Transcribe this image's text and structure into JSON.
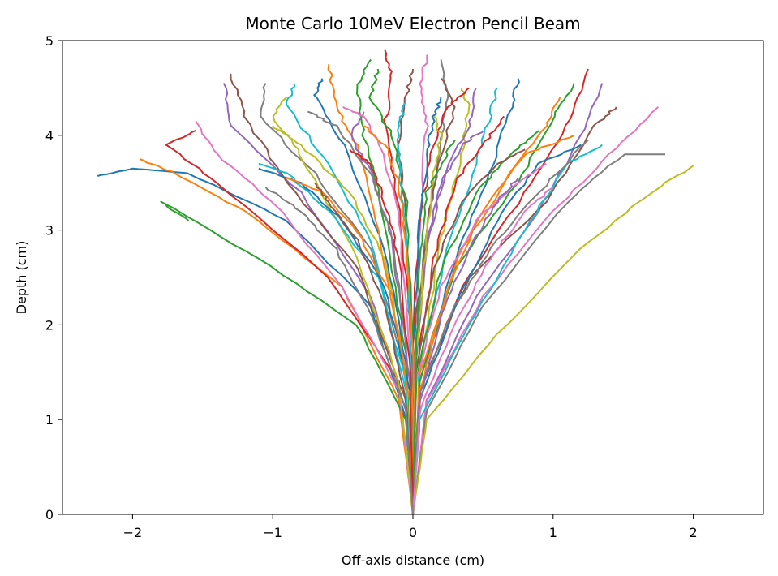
{
  "chart_data": {
    "type": "line",
    "title": "Monte Carlo 10MeV Electron Pencil Beam",
    "xlabel": "Off-axis distance (cm)",
    "ylabel": "Depth (cm)",
    "xlim": [
      -2.5,
      2.5
    ],
    "ylim": [
      0,
      5
    ],
    "x_ticks": [
      -2,
      -1,
      0,
      1,
      2
    ],
    "x_tick_labels": [
      "−2",
      "−1",
      "0",
      "1",
      "2"
    ],
    "y_ticks": [
      0,
      1,
      2,
      3,
      4,
      5
    ],
    "y_tick_labels": [
      "0",
      "1",
      "2",
      "3",
      "4",
      "5"
    ],
    "grid": false,
    "legend": "none",
    "palette": [
      "#1f77b4",
      "#ff7f0e",
      "#2ca02c",
      "#d62728",
      "#9467bd",
      "#8c564b",
      "#e377c2",
      "#7f7f7f",
      "#bcbd22",
      "#17becf"
    ],
    "series": [
      {
        "x": [
          0,
          -0.05,
          -0.3,
          -0.9,
          -1.6,
          -2.0,
          -2.25
        ],
        "y": [
          0,
          1.0,
          2.2,
          3.1,
          3.6,
          3.65,
          3.57
        ]
      },
      {
        "x": [
          0,
          -0.1,
          -0.5,
          -1.2,
          -1.7,
          -1.95
        ],
        "y": [
          0,
          1.2,
          2.4,
          3.2,
          3.6,
          3.75
        ]
      },
      {
        "x": [
          0,
          -0.05,
          -0.4,
          -1.1,
          -1.8,
          -1.6
        ],
        "y": [
          0,
          1.0,
          2.0,
          2.7,
          3.3,
          3.1
        ]
      },
      {
        "x": [
          0,
          -0.1,
          -0.6,
          -1.4,
          -1.75,
          -1.55
        ],
        "y": [
          0,
          1.4,
          2.5,
          3.5,
          3.9,
          4.05
        ]
      },
      {
        "x": [
          0,
          -0.05,
          -0.3,
          -0.8,
          -1.3,
          -1.35
        ],
        "y": [
          0,
          1.1,
          2.3,
          3.4,
          4.1,
          4.55
        ]
      },
      {
        "x": [
          0,
          -0.05,
          -0.4,
          -0.9,
          -1.2,
          -1.3
        ],
        "y": [
          0,
          1.2,
          2.6,
          3.5,
          4.2,
          4.65
        ]
      },
      {
        "x": [
          0,
          -0.1,
          -0.5,
          -1.0,
          -1.4,
          -1.55
        ],
        "y": [
          0,
          1.3,
          2.4,
          3.3,
          3.8,
          4.15
        ]
      },
      {
        "x": [
          0,
          -0.05,
          -0.3,
          -0.7,
          -1.1,
          -1.05
        ],
        "y": [
          0,
          1.5,
          2.8,
          3.6,
          4.2,
          4.55
        ]
      },
      {
        "x": [
          0,
          -0.1,
          -0.4,
          -0.8,
          -1.0,
          -0.9
        ],
        "y": [
          0,
          1.4,
          2.7,
          3.8,
          4.2,
          4.4
        ]
      },
      {
        "x": [
          0,
          -0.05,
          -0.3,
          -0.6,
          -0.9,
          -0.85
        ],
        "y": [
          0,
          1.3,
          2.9,
          3.7,
          4.3,
          4.55
        ]
      },
      {
        "x": [
          0,
          -0.05,
          -0.2,
          -0.5,
          -0.7,
          -0.65
        ],
        "y": [
          0,
          1.6,
          2.8,
          3.9,
          4.4,
          4.6
        ]
      },
      {
        "x": [
          0,
          -0.05,
          -0.25,
          -0.4,
          -0.55,
          -0.6
        ],
        "y": [
          0,
          1.5,
          3.0,
          3.9,
          4.3,
          4.75
        ]
      },
      {
        "x": [
          0,
          -0.05,
          -0.2,
          -0.35,
          -0.4,
          -0.3
        ],
        "y": [
          0,
          1.7,
          3.1,
          4.0,
          4.5,
          4.8
        ]
      },
      {
        "x": [
          0,
          0.0,
          -0.1,
          -0.2,
          -0.15,
          -0.2
        ],
        "y": [
          0,
          1.8,
          3.2,
          4.1,
          4.6,
          4.9
        ]
      },
      {
        "x": [
          0,
          -0.02,
          -0.15,
          -0.3,
          -0.45,
          -0.35
        ],
        "y": [
          0,
          1.4,
          2.9,
          3.6,
          4.0,
          4.25
        ]
      },
      {
        "x": [
          0,
          0.0,
          -0.05,
          -0.1,
          -0.05,
          0.0
        ],
        "y": [
          0,
          1.7,
          3.0,
          3.9,
          4.4,
          4.7
        ]
      },
      {
        "x": [
          0,
          0.02,
          0.05,
          0.1,
          0.05,
          0.1
        ],
        "y": [
          0,
          1.8,
          3.2,
          4.1,
          4.5,
          4.85
        ]
      },
      {
        "x": [
          0,
          0.02,
          0.1,
          0.2,
          0.25,
          0.2
        ],
        "y": [
          0,
          1.6,
          3.0,
          3.9,
          4.4,
          4.8
        ]
      },
      {
        "x": [
          0,
          0.05,
          0.2,
          0.35,
          0.4,
          0.35
        ],
        "y": [
          0,
          1.5,
          2.9,
          3.8,
          4.3,
          4.5
        ]
      },
      {
        "x": [
          0,
          0.05,
          0.25,
          0.45,
          0.55,
          0.6
        ],
        "y": [
          0,
          1.6,
          2.8,
          3.7,
          4.2,
          4.5
        ]
      },
      {
        "x": [
          0,
          0.05,
          0.3,
          0.55,
          0.7,
          0.75
        ],
        "y": [
          0,
          1.4,
          2.7,
          3.6,
          4.3,
          4.6
        ]
      },
      {
        "x": [
          0,
          0.05,
          0.35,
          0.7,
          0.95,
          1.05
        ],
        "y": [
          0,
          1.5,
          2.8,
          3.6,
          4.1,
          4.4
        ]
      },
      {
        "x": [
          0,
          0.05,
          0.3,
          0.75,
          1.0,
          1.15
        ],
        "y": [
          0,
          1.4,
          2.6,
          3.5,
          4.2,
          4.55
        ]
      },
      {
        "x": [
          0,
          0.05,
          0.35,
          0.8,
          1.1,
          1.25
        ],
        "y": [
          0,
          1.3,
          2.4,
          3.4,
          4.1,
          4.7
        ]
      },
      {
        "x": [
          0,
          0.1,
          0.45,
          0.9,
          1.2,
          1.35
        ],
        "y": [
          0,
          1.2,
          2.3,
          3.2,
          4.0,
          4.55
        ]
      },
      {
        "x": [
          0,
          0.05,
          0.4,
          0.95,
          1.3,
          1.45
        ],
        "y": [
          0,
          1.3,
          2.5,
          3.3,
          4.1,
          4.3
        ]
      },
      {
        "x": [
          0,
          0.1,
          0.5,
          1.0,
          1.4,
          1.75
        ],
        "y": [
          0,
          1.2,
          2.3,
          3.2,
          3.8,
          4.3
        ]
      },
      {
        "x": [
          0,
          0.1,
          0.5,
          1.1,
          1.5,
          1.8
        ],
        "y": [
          0,
          1.1,
          2.2,
          3.3,
          3.8,
          3.8
        ]
      },
      {
        "x": [
          0,
          0.1,
          0.6,
          1.2,
          1.7,
          2.0
        ],
        "y": [
          0,
          1.0,
          1.9,
          2.8,
          3.4,
          3.68
        ]
      },
      {
        "x": [
          0,
          0.05,
          0.4,
          0.8,
          1.1,
          1.35
        ],
        "y": [
          0,
          1.0,
          2.0,
          3.0,
          3.7,
          3.9
        ]
      },
      {
        "x": [
          0,
          0.05,
          0.3,
          0.6,
          0.9,
          1.2
        ],
        "y": [
          0,
          1.2,
          2.2,
          3.1,
          3.7,
          3.9
        ]
      },
      {
        "x": [
          0,
          0.05,
          0.25,
          0.5,
          0.8,
          1.15
        ],
        "y": [
          0,
          1.3,
          2.4,
          3.2,
          3.8,
          4.0
        ]
      },
      {
        "x": [
          0,
          0.02,
          0.2,
          0.45,
          0.7,
          0.9
        ],
        "y": [
          0,
          1.4,
          2.6,
          3.4,
          3.8,
          4.05
        ]
      },
      {
        "x": [
          0,
          0.02,
          0.15,
          0.3,
          0.5,
          0.65
        ],
        "y": [
          0,
          1.5,
          2.7,
          3.5,
          3.9,
          4.2
        ]
      },
      {
        "x": [
          0,
          0.02,
          0.1,
          0.25,
          0.4,
          0.45
        ],
        "y": [
          0,
          1.7,
          2.9,
          3.7,
          4.1,
          4.5
        ]
      },
      {
        "x": [
          0,
          0.0,
          0.1,
          0.2,
          0.3,
          0.2
        ],
        "y": [
          0,
          1.8,
          3.0,
          3.8,
          4.3,
          4.6
        ]
      },
      {
        "x": [
          0,
          -0.02,
          -0.1,
          -0.2,
          -0.35,
          -0.5
        ],
        "y": [
          0,
          1.7,
          3.1,
          3.8,
          4.2,
          4.3
        ]
      },
      {
        "x": [
          0,
          -0.02,
          -0.15,
          -0.3,
          -0.55,
          -0.75
        ],
        "y": [
          0,
          1.6,
          2.9,
          3.6,
          4.1,
          4.25
        ]
      },
      {
        "x": [
          0,
          -0.05,
          -0.2,
          -0.45,
          -0.8,
          -1.0
        ],
        "y": [
          0,
          1.5,
          2.7,
          3.4,
          3.9,
          4.1
        ]
      },
      {
        "x": [
          0,
          -0.05,
          -0.25,
          -0.6,
          -0.9,
          -1.1
        ],
        "y": [
          0,
          1.4,
          2.5,
          3.2,
          3.6,
          3.7
        ]
      },
      {
        "x": [
          0,
          -0.02,
          -0.2,
          -0.5,
          -0.8,
          -1.1
        ],
        "y": [
          0,
          1.3,
          2.4,
          3.1,
          3.5,
          3.65
        ]
      },
      {
        "x": [
          0,
          -0.02,
          -0.15,
          -0.4,
          -0.65,
          -0.9
        ],
        "y": [
          0,
          1.2,
          2.3,
          3.0,
          3.4,
          3.55
        ]
      },
      {
        "x": [
          0,
          0.0,
          -0.05,
          -0.15,
          -0.3,
          -0.25
        ],
        "y": [
          0,
          1.9,
          3.3,
          4.0,
          4.4,
          4.7
        ]
      },
      {
        "x": [
          0,
          0.0,
          0.05,
          0.15,
          0.25,
          0.4
        ],
        "y": [
          0,
          1.9,
          3.2,
          3.9,
          4.3,
          4.5
        ]
      },
      {
        "x": [
          0,
          0.02,
          0.1,
          0.2,
          0.35,
          0.5
        ],
        "y": [
          0,
          1.6,
          2.8,
          3.5,
          3.9,
          4.05
        ]
      },
      {
        "x": [
          0,
          0.02,
          0.15,
          0.35,
          0.6,
          0.8
        ],
        "y": [
          0,
          1.5,
          2.6,
          3.3,
          3.7,
          3.85
        ]
      },
      {
        "x": [
          0,
          0.02,
          0.2,
          0.45,
          0.75,
          0.95
        ],
        "y": [
          0,
          1.4,
          2.4,
          3.1,
          3.5,
          3.7
        ]
      },
      {
        "x": [
          0,
          0.05,
          0.3,
          0.6,
          0.9,
          1.25
        ],
        "y": [
          0,
          1.3,
          2.2,
          2.9,
          3.4,
          3.95
        ]
      },
      {
        "x": [
          0,
          0.02,
          0.1,
          0.15,
          0.2,
          0.15
        ],
        "y": [
          0,
          1.7,
          2.9,
          3.6,
          4.0,
          4.2
        ]
      },
      {
        "x": [
          0,
          -0.02,
          -0.05,
          -0.1,
          -0.1,
          -0.05
        ],
        "y": [
          0,
          1.8,
          3.0,
          3.7,
          4.1,
          4.35
        ]
      },
      {
        "x": [
          0,
          0.0,
          0.05,
          0.1,
          0.15,
          0.2
        ],
        "y": [
          0,
          1.7,
          3.1,
          3.8,
          4.2,
          4.4
        ]
      },
      {
        "x": [
          0,
          0.0,
          -0.05,
          -0.1,
          -0.2,
          -0.35
        ],
        "y": [
          0,
          1.6,
          2.9,
          3.5,
          3.9,
          4.1
        ]
      },
      {
        "x": [
          0,
          0.02,
          0.05,
          0.1,
          0.2,
          0.3
        ],
        "y": [
          0,
          1.5,
          2.8,
          3.4,
          3.7,
          3.95
        ]
      },
      {
        "x": [
          0,
          -0.02,
          -0.1,
          -0.2,
          -0.3,
          -0.45
        ],
        "y": [
          0,
          1.5,
          2.7,
          3.3,
          3.7,
          3.85
        ]
      },
      {
        "x": [
          0,
          0.05,
          0.2,
          0.4,
          0.6,
          0.75
        ],
        "y": [
          0,
          1.2,
          2.1,
          2.8,
          3.3,
          3.55
        ]
      },
      {
        "x": [
          0,
          -0.05,
          -0.2,
          -0.4,
          -0.6,
          -0.7
        ],
        "y": [
          0,
          1.2,
          2.2,
          2.9,
          3.3,
          3.5
        ]
      },
      {
        "x": [
          0,
          0.05,
          0.3,
          0.55,
          0.8,
          1.0
        ],
        "y": [
          0,
          1.1,
          2.0,
          2.7,
          3.2,
          3.45
        ]
      },
      {
        "x": [
          0,
          -0.05,
          -0.3,
          -0.55,
          -0.8,
          -1.05
        ],
        "y": [
          0,
          1.1,
          2.1,
          2.8,
          3.2,
          3.45
        ]
      }
    ]
  }
}
